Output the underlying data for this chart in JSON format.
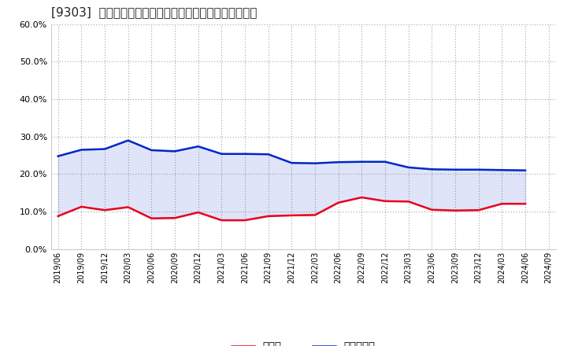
{
  "title": "[9303]  現頃金、有利子負債の総資産に対する比率の推移",
  "x_labels": [
    "2019/06",
    "2019/09",
    "2019/12",
    "2020/03",
    "2020/06",
    "2020/09",
    "2020/12",
    "2021/03",
    "2021/06",
    "2021/09",
    "2021/12",
    "2022/03",
    "2022/06",
    "2022/09",
    "2022/12",
    "2023/03",
    "2023/06",
    "2023/09",
    "2023/12",
    "2024/03",
    "2024/06",
    "2024/09"
  ],
  "cash": [
    0.088,
    0.113,
    0.104,
    0.112,
    0.082,
    0.083,
    0.098,
    0.077,
    0.077,
    0.088,
    0.09,
    0.091,
    0.124,
    0.138,
    0.128,
    0.127,
    0.105,
    0.103,
    0.104,
    0.121,
    0.121,
    null
  ],
  "debt": [
    0.248,
    0.265,
    0.267,
    0.29,
    0.264,
    0.261,
    0.274,
    0.254,
    0.254,
    0.253,
    0.23,
    0.229,
    0.232,
    0.233,
    0.233,
    0.218,
    0.213,
    0.212,
    0.212,
    0.211,
    0.21,
    null
  ],
  "cash_color": "#e8001c",
  "debt_color": "#0028c8",
  "bg_color": "#ffffff",
  "plot_bg_color": "#ffffff",
  "grid_color": "#999999",
  "title_fontsize": 11,
  "legend_label_cash": "現頃金",
  "legend_label_debt": "有利子負債",
  "ylim": [
    0.0,
    0.6
  ],
  "yticks": [
    0.0,
    0.1,
    0.2,
    0.3,
    0.4,
    0.5,
    0.6
  ]
}
